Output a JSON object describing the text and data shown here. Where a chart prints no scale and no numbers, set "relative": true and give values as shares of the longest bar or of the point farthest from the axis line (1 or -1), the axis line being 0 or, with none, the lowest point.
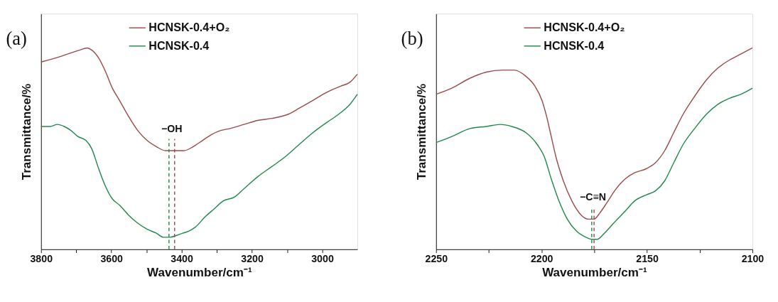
{
  "chart_data": [
    {
      "type": "line",
      "relative": true,
      "xlabel": "Wavenumber/cm⁻¹",
      "ylabel": "Transmittance/%",
      "legend": "top",
      "grid": false,
      "xlim": [
        3800,
        2900
      ],
      "xticks": [
        3800,
        {
          "value": 3700,
          "label": null
        },
        3600,
        {
          "value": 3500,
          "label": null
        },
        3400,
        {
          "value": 3300,
          "label": null
        },
        3200,
        {
          "value": 3100,
          "label": null
        },
        3000
      ],
      "annotations": [
        "(a)",
        "−OH"
      ],
      "ref_lines": [
        {
          "axis": "x",
          "value": 3436,
          "color": "#1f8a4c",
          "line_style": "dashed"
        },
        {
          "axis": "x",
          "value": 3420,
          "color": "#9c4a4a",
          "line_style": "dashed"
        }
      ],
      "series": [
        {
          "name": "HCNSK-0.4+O₂",
          "color": "#9c4a4a",
          "x": [
            3800,
            3741,
            3689,
            3669,
            3656,
            3636,
            3616,
            3597,
            3577,
            3551,
            3525,
            3498,
            3472,
            3446,
            3420,
            3393,
            3367,
            3341,
            3315,
            3289,
            3262,
            3223,
            3184,
            3144,
            3098,
            3066,
            3026,
            2987,
            2948,
            2921,
            2900
          ],
          "values": [
            0.93,
            0.96,
            0.99,
            1.0,
            0.99,
            0.95,
            0.88,
            0.8,
            0.74,
            0.66,
            0.59,
            0.54,
            0.51,
            0.49,
            0.49,
            0.49,
            0.51,
            0.54,
            0.57,
            0.59,
            0.6,
            0.62,
            0.64,
            0.65,
            0.67,
            0.7,
            0.74,
            0.78,
            0.81,
            0.83,
            0.87
          ]
        },
        {
          "name": "HCNSK-0.4",
          "color": "#1f8a4c",
          "x": [
            3800,
            3774,
            3754,
            3734,
            3715,
            3695,
            3672,
            3656,
            3636,
            3616,
            3597,
            3577,
            3551,
            3525,
            3498,
            3472,
            3452,
            3433,
            3413,
            3397,
            3380,
            3361,
            3334,
            3308,
            3282,
            3249,
            3223,
            3184,
            3144,
            3105,
            3066,
            3026,
            2987,
            2954,
            2921,
            2900
          ],
          "values": [
            0.61,
            0.61,
            0.62,
            0.61,
            0.59,
            0.56,
            0.54,
            0.5,
            0.4,
            0.31,
            0.25,
            0.22,
            0.17,
            0.13,
            0.1,
            0.08,
            0.06,
            0.06,
            0.07,
            0.08,
            0.09,
            0.11,
            0.16,
            0.2,
            0.24,
            0.26,
            0.3,
            0.36,
            0.41,
            0.46,
            0.52,
            0.58,
            0.63,
            0.67,
            0.72,
            0.77
          ]
        }
      ]
    },
    {
      "type": "line",
      "relative": true,
      "xlabel": "Wavenumber/cm⁻¹",
      "ylabel": "Transmittance/%",
      "legend": "top",
      "grid": false,
      "xlim": [
        2250,
        2100
      ],
      "xticks": [
        2250,
        {
          "value": 2225,
          "label": null
        },
        2200,
        {
          "value": 2175,
          "label": null
        },
        2150,
        {
          "value": 2125,
          "label": null
        },
        2100
      ],
      "annotations": [
        "(b)",
        "−C≡N"
      ],
      "ref_lines": [
        {
          "axis": "x",
          "value": 2176.2,
          "color": "#1f8a4c",
          "line_style": "dashed"
        },
        {
          "axis": "x",
          "value": 2175.1,
          "color": "#9c4a4a",
          "line_style": "dashed"
        }
      ],
      "series": [
        {
          "name": "HCNSK-0.4+O₂",
          "color": "#9c4a4a",
          "x": [
            2250,
            2242.6,
            2233.9,
            2226.2,
            2218.5,
            2213.0,
            2207.5,
            2203.1,
            2199.8,
            2197.6,
            2195.4,
            2193.2,
            2190.0,
            2185.6,
            2181.2,
            2177.9,
            2175.1,
            2172.4,
            2169.1,
            2164.7,
            2160.3,
            2155.9,
            2150.4,
            2146.0,
            2141.6,
            2137.3,
            2132.9,
            2127.4,
            2121.9,
            2116.4,
            2110.9,
            2105.4,
            2100
          ],
          "values": [
            0.77,
            0.8,
            0.85,
            0.88,
            0.89,
            0.89,
            0.86,
            0.81,
            0.74,
            0.66,
            0.56,
            0.46,
            0.35,
            0.24,
            0.17,
            0.15,
            0.15,
            0.18,
            0.23,
            0.3,
            0.35,
            0.38,
            0.4,
            0.43,
            0.49,
            0.58,
            0.67,
            0.76,
            0.84,
            0.9,
            0.94,
            0.97,
            1.0
          ]
        },
        {
          "name": "HCNSK-0.4",
          "color": "#1f8a4c",
          "x": [
            2250,
            2242.6,
            2233.9,
            2226.2,
            2219.6,
            2214.1,
            2207.5,
            2202.0,
            2198.7,
            2195.4,
            2192.1,
            2187.8,
            2183.4,
            2179.0,
            2176.2,
            2173.5,
            2170.2,
            2165.8,
            2160.3,
            2155.9,
            2150.4,
            2146.0,
            2141.6,
            2137.3,
            2132.9,
            2127.4,
            2121.9,
            2116.4,
            2110.9,
            2105.4,
            2100
          ],
          "values": [
            0.53,
            0.56,
            0.6,
            0.61,
            0.62,
            0.61,
            0.58,
            0.52,
            0.46,
            0.35,
            0.25,
            0.15,
            0.09,
            0.06,
            0.05,
            0.05,
            0.08,
            0.13,
            0.19,
            0.24,
            0.27,
            0.29,
            0.34,
            0.43,
            0.52,
            0.6,
            0.67,
            0.72,
            0.75,
            0.77,
            0.8
          ]
        }
      ]
    }
  ]
}
